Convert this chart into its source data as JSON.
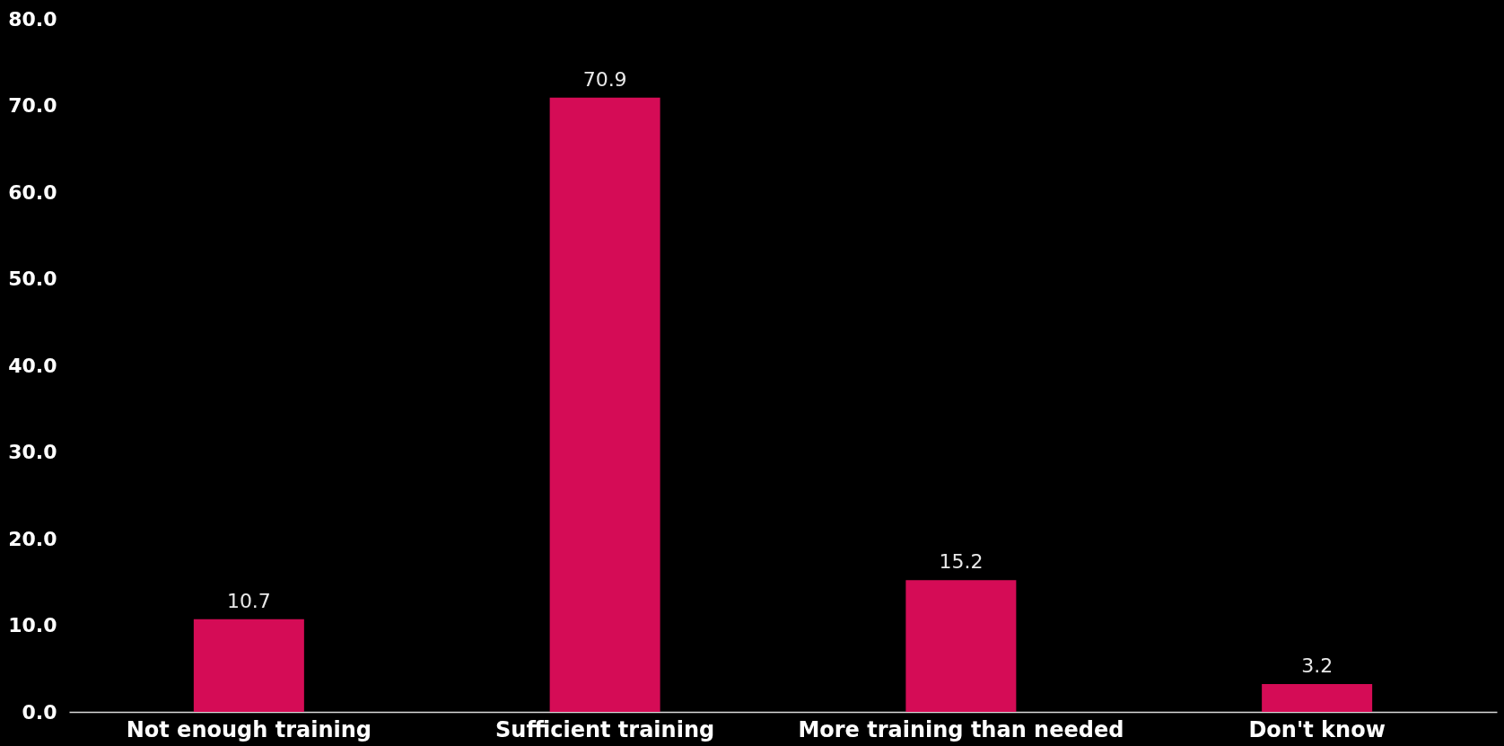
{
  "chart_data": {
    "type": "bar",
    "categories": [
      "Not enough training",
      "Sufficient training",
      "More training than needed",
      "Don't know"
    ],
    "values": [
      10.7,
      70.9,
      15.2,
      3.2
    ],
    "color": "#d50c56",
    "ylim": [
      0,
      80
    ],
    "yticks": [
      {
        "value": 0,
        "label": "0.0"
      },
      {
        "value": 10,
        "label": "10.0"
      },
      {
        "value": 20,
        "label": "20.0"
      },
      {
        "value": 30,
        "label": "30.0"
      },
      {
        "value": 40,
        "label": "40.0"
      },
      {
        "value": 50,
        "label": "50.0"
      },
      {
        "value": 60,
        "label": "60.0"
      },
      {
        "value": 70,
        "label": "70.0"
      },
      {
        "value": 80,
        "label": "80.0"
      }
    ],
    "data_labels": true,
    "grid": false
  }
}
